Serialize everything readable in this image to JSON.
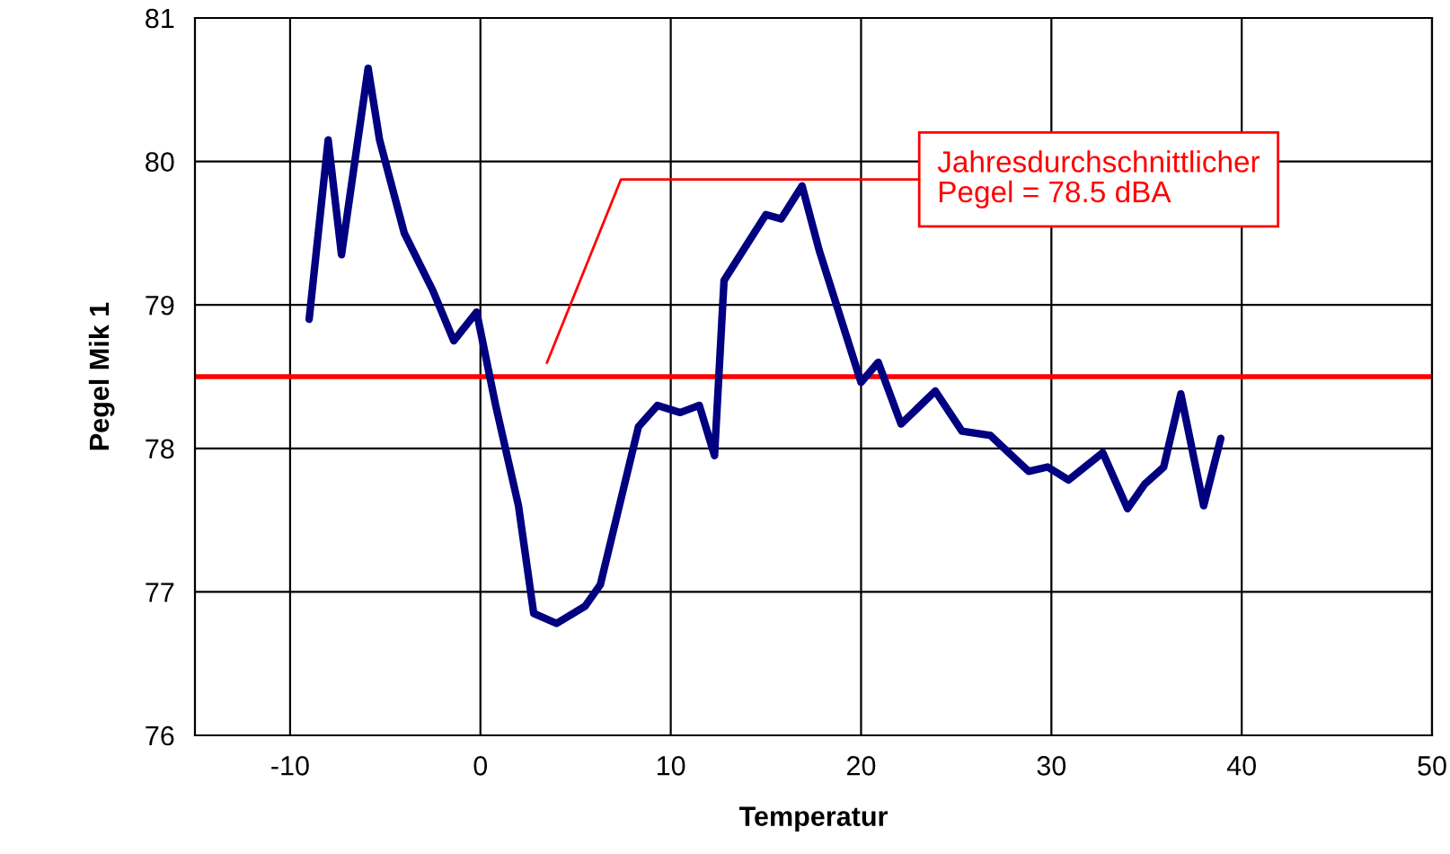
{
  "chart_data": {
    "type": "line",
    "xlabel": "Temperatur",
    "ylabel": "Pegel Mik 1",
    "xlim": [
      -15,
      50
    ],
    "xticks": [
      -10,
      0,
      10,
      20,
      30,
      40,
      50
    ],
    "ylim": [
      76,
      81
    ],
    "yticks": [
      76,
      77,
      78,
      79,
      80,
      81
    ],
    "grid": true,
    "marker": "none",
    "line_style": "solid",
    "series": [
      {
        "color": "#000080",
        "x": [
          -9,
          -8,
          -7.3,
          -5.9,
          -5.3,
          -4,
          -2.5,
          -1.4,
          -0.2,
          0.8,
          2,
          2.8,
          4,
          5.5,
          6.3,
          7.3,
          8.3,
          9.3,
          10.5,
          11.5,
          12.3,
          12.8,
          15.0,
          15.8,
          16.9,
          17.8,
          20.0,
          20.9,
          22.1,
          23.9,
          25.3,
          26.8,
          28.8,
          29.8,
          30.9,
          32.7,
          34.0,
          34.9,
          35.9,
          36.8,
          38.0,
          38.9
        ],
        "values": [
          78.9,
          80.15,
          79.35,
          80.65,
          80.15,
          79.5,
          79.1,
          78.75,
          78.95,
          78.3,
          77.6,
          76.85,
          76.78,
          76.9,
          77.05,
          77.6,
          78.15,
          78.3,
          78.25,
          78.3,
          77.95,
          79.17,
          79.63,
          79.6,
          79.83,
          79.38,
          78.46,
          78.6,
          78.17,
          78.4,
          78.12,
          78.09,
          77.84,
          77.87,
          77.78,
          77.97,
          77.58,
          77.75,
          77.87,
          78.38,
          77.6,
          78.07
        ]
      }
    ],
    "ref_lines": [
      {
        "axis": "y",
        "value": 78.5,
        "color": "#ff0000",
        "line_style": "solid",
        "label": "Jahresdurchschnittlicher\nPegel = 78.5 dBA"
      }
    ]
  }
}
